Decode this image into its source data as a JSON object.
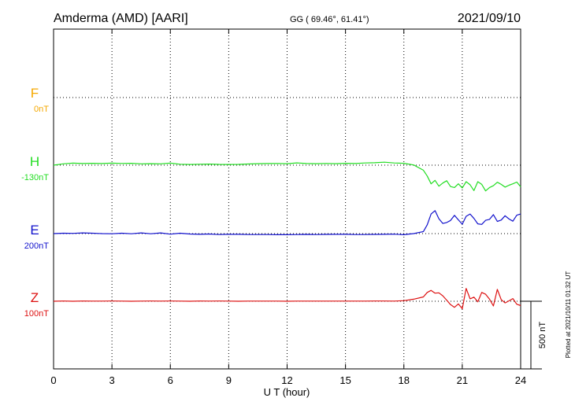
{
  "header": {
    "station": "Amderma (AMD)  [AARI]",
    "coords": "GG ( 69.46°,  61.41°)",
    "date": "2021/09/10"
  },
  "plotted_note": "Plotted at 2021/10/11 01:32 UT",
  "scale_label": "500 nT",
  "chart_data": {
    "type": "line",
    "xlabel": "U T (hour)",
    "xlim": [
      0,
      24
    ],
    "xticks": [
      "0",
      "3",
      "6",
      "9",
      "12",
      "15",
      "18",
      "21",
      "24"
    ],
    "scale_nT": 500,
    "colors": {
      "F": "#f5a800",
      "H": "#22dd22",
      "E": "#1111cc",
      "Z": "#dd1111"
    },
    "series": [
      {
        "name": "F",
        "baseline_label": "0nT",
        "x": [],
        "y": []
      },
      {
        "name": "H",
        "baseline_label": "-130nT",
        "x": [
          0,
          0.5,
          1,
          1.5,
          2,
          2.5,
          3,
          3.5,
          4,
          4.5,
          5,
          5.5,
          6,
          6.5,
          7,
          7.5,
          8,
          8.5,
          9,
          9.5,
          10,
          10.5,
          11,
          11.5,
          12,
          12.5,
          13,
          13.5,
          14,
          14.5,
          15,
          15.5,
          16,
          16.5,
          17,
          17.5,
          18,
          18.5,
          19,
          19.2,
          19.4,
          19.6,
          19.8,
          20,
          20.2,
          20.4,
          20.6,
          20.8,
          21,
          21.2,
          21.4,
          21.6,
          21.8,
          22,
          22.2,
          22.4,
          22.6,
          22.8,
          23,
          23.2,
          23.4,
          23.6,
          23.8,
          24
        ],
        "y": [
          -130,
          -120,
          -115,
          -118,
          -116,
          -118,
          -115,
          -117,
          -116,
          -120,
          -119,
          -120,
          -115,
          -123,
          -125,
          -123,
          -122,
          -124,
          -125,
          -124,
          -121,
          -119,
          -118,
          -117,
          -119,
          -113,
          -118,
          -119,
          -117,
          -119,
          -116,
          -118,
          -114,
          -112,
          -108,
          -114,
          -116,
          -128,
          -167,
          -210,
          -268,
          -242,
          -285,
          -262,
          -245,
          -288,
          -295,
          -268,
          -298,
          -252,
          -275,
          -318,
          -252,
          -272,
          -320,
          -295,
          -282,
          -256,
          -272,
          -292,
          -278,
          -268,
          -255,
          -290
        ]
      },
      {
        "name": "E",
        "baseline_label": "200nT",
        "x": [
          0,
          0.5,
          1,
          1.5,
          2,
          2.5,
          3,
          3.5,
          4,
          4.5,
          5,
          5.5,
          6,
          6.5,
          7,
          7.5,
          8,
          8.5,
          9,
          9.5,
          10,
          10.5,
          11,
          11.5,
          12,
          12.5,
          13,
          13.5,
          14,
          14.5,
          15,
          15.5,
          16,
          16.5,
          17,
          17.5,
          18,
          18.5,
          19,
          19.2,
          19.4,
          19.6,
          19.8,
          20,
          20.2,
          20.4,
          20.6,
          20.8,
          21,
          21.2,
          21.4,
          21.6,
          21.8,
          22,
          22.2,
          22.4,
          22.6,
          22.8,
          23,
          23.2,
          23.4,
          23.6,
          23.8,
          24
        ],
        "y": [
          200,
          203,
          202,
          205,
          203,
          200,
          199,
          203,
          199,
          205,
          199,
          205,
          196,
          203,
          197,
          195,
          197,
          193,
          195,
          195,
          193,
          193,
          193,
          192,
          192,
          193,
          194,
          193,
          194,
          195,
          195,
          193,
          193,
          194,
          195,
          196,
          192,
          200,
          215,
          265,
          345,
          370,
          310,
          275,
          282,
          297,
          335,
          302,
          270,
          328,
          345,
          312,
          272,
          268,
          298,
          305,
          340,
          290,
          300,
          332,
          308,
          292,
          336,
          345
        ]
      },
      {
        "name": "Z",
        "baseline_label": "100nT",
        "x": [
          0,
          0.5,
          1,
          1.5,
          2,
          2.5,
          3,
          3.5,
          4,
          4.5,
          5,
          5.5,
          6,
          6.5,
          7,
          7.5,
          8,
          8.5,
          9,
          9.5,
          10,
          10.5,
          11,
          11.5,
          12,
          12.5,
          13,
          13.5,
          14,
          14.5,
          15,
          15.5,
          16,
          16.5,
          17,
          17.5,
          18,
          18.5,
          19,
          19.2,
          19.4,
          19.6,
          19.8,
          20,
          20.2,
          20.4,
          20.6,
          20.8,
          21,
          21.2,
          21.4,
          21.6,
          21.8,
          22,
          22.2,
          22.4,
          22.6,
          22.8,
          23,
          23.2,
          23.4,
          23.6,
          23.8,
          24
        ],
        "y": [
          100,
          102,
          100,
          102,
          101,
          101,
          102,
          101,
          100,
          101,
          102,
          101,
          102,
          101,
          100,
          102,
          101,
          102,
          101,
          100,
          101,
          101,
          101,
          101,
          100,
          101,
          101,
          101,
          101,
          101,
          101,
          101,
          101,
          102,
          102,
          101,
          104,
          115,
          132,
          165,
          180,
          160,
          162,
          140,
          108,
          75,
          55,
          80,
          45,
          195,
          118,
          130,
          96,
          165,
          152,
          115,
          65,
          188,
          112,
          88,
          103,
          120,
          78,
          68
        ]
      }
    ]
  }
}
